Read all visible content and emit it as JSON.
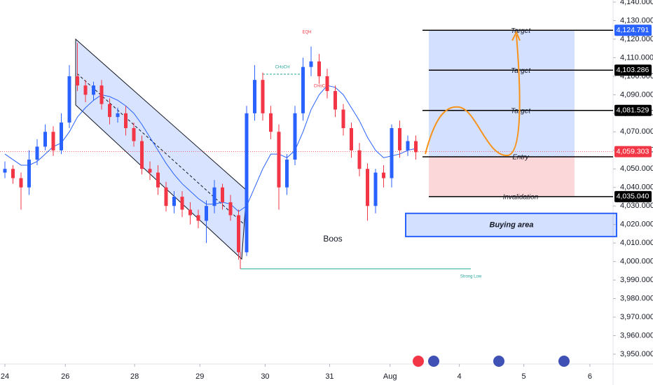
{
  "chart_data": {
    "type": "candlestick",
    "open": [
      4048,
      4050,
      4045,
      4040,
      4055,
      4062,
      4070,
      4060,
      4075,
      4100,
      4095,
      4090,
      4095,
      4085,
      4078,
      4080,
      4072,
      4065,
      4050,
      4048,
      4040,
      4030,
      4035,
      4028,
      4025,
      4022,
      4030,
      4040,
      4032,
      4025,
      4005,
      4080,
      4098,
      4080,
      4070,
      4040,
      4055,
      4080,
      4105,
      4108,
      4100,
      4092,
      4082,
      4072,
      4060,
      4050,
      4030,
      4048,
      4045,
      4072,
      4060,
      4065
    ],
    "high": [
      4054,
      4052,
      4048,
      4060,
      4066,
      4074,
      4073,
      4080,
      4106,
      4118,
      4098,
      4097,
      4098,
      4088,
      4083,
      4084,
      4075,
      4068,
      4054,
      4052,
      4043,
      4038,
      4038,
      4032,
      4028,
      4033,
      4044,
      4042,
      4036,
      4028,
      4084,
      4106,
      4102,
      4084,
      4074,
      4058,
      4084,
      4110,
      4116,
      4112,
      4104,
      4095,
      4085,
      4075,
      4064,
      4053,
      4050,
      4052,
      4074,
      4076,
      4068,
      4068
    ],
    "low": [
      4045,
      4042,
      4028,
      4036,
      4052,
      4060,
      4057,
      4058,
      4072,
      4092,
      4086,
      4087,
      4082,
      4074,
      4075,
      4068,
      4062,
      4047,
      4044,
      4036,
      4027,
      4026,
      4024,
      4020,
      4018,
      4010,
      4026,
      4028,
      4022,
      4001,
      4003,
      4076,
      4076,
      4066,
      4028,
      4036,
      4052,
      4076,
      4100,
      4096,
      4088,
      4078,
      4068,
      4056,
      4046,
      4022,
      4026,
      4040,
      4040,
      4056,
      4057,
      4055
    ],
    "close": [
      4050,
      4045,
      4040,
      4055,
      4062,
      4070,
      4060,
      4075,
      4100,
      4095,
      4090,
      4095,
      4085,
      4078,
      4080,
      4072,
      4065,
      4050,
      4048,
      4040,
      4030,
      4035,
      4028,
      4025,
      4022,
      4030,
      4040,
      4032,
      4025,
      4005,
      4080,
      4098,
      4080,
      4070,
      4040,
      4055,
      4080,
      4105,
      4108,
      4100,
      4092,
      4082,
      4072,
      4060,
      4050,
      4030,
      4048,
      4045,
      4072,
      4060,
      4065,
      4059
    ],
    "moving_average": [
      4058,
      4055,
      4052,
      4052,
      4054,
      4058,
      4062,
      4064,
      4070,
      4078,
      4083,
      4087,
      4090,
      4089,
      4087,
      4084,
      4080,
      4074,
      4067,
      4060,
      4053,
      4047,
      4042,
      4038,
      4034,
      4031,
      4031,
      4032,
      4031,
      4027,
      4030,
      4040,
      4050,
      4058,
      4058,
      4056,
      4060,
      4070,
      4082,
      4090,
      4095,
      4094,
      4090,
      4083,
      4076,
      4067,
      4060,
      4056,
      4057,
      4058,
      4060,
      4061
    ],
    "up_color": "#2962ff",
    "down_color": "#f23645",
    "ma_color": "#2962ff",
    "xlim": [
      -0.6,
      75
    ],
    "xticks": [
      {
        "value": 0,
        "label": "24"
      },
      {
        "value": 7.5,
        "label": "26"
      },
      {
        "value": 16.1,
        "label": "28"
      },
      {
        "value": 24.2,
        "label": "29"
      },
      {
        "value": 32.3,
        "label": "30"
      },
      {
        "value": 40.3,
        "label": "31"
      },
      {
        "value": 47.8,
        "label": "Aug"
      },
      {
        "value": 56.4,
        "label": "4"
      },
      {
        "value": 64.4,
        "label": "5"
      },
      {
        "value": 72.6,
        "label": "6"
      }
    ],
    "ylim": [
      3950,
      4140
    ],
    "yticks": [
      {
        "value": 4140,
        "label": "4,140.000"
      },
      {
        "value": 4130,
        "label": "4,130.000"
      },
      {
        "value": 4120,
        "label": "4,120.000"
      },
      {
        "value": 4110,
        "label": "4,110.000"
      },
      {
        "value": 4100,
        "label": "4,100.000"
      },
      {
        "value": 4090,
        "label": "4,090.000"
      },
      {
        "value": 4080,
        "label": "4,080.000"
      },
      {
        "value": 4070,
        "label": "4,070.000"
      },
      {
        "value": 4060,
        "label": "4,060.000"
      },
      {
        "value": 4050,
        "label": "4,050.000"
      },
      {
        "value": 4040,
        "label": "4,040.000"
      },
      {
        "value": 4030,
        "label": "4,030.000"
      },
      {
        "value": 4020,
        "label": "4,020.000"
      },
      {
        "value": 4010,
        "label": "4,010.000"
      },
      {
        "value": 4000,
        "label": "4,000.000"
      },
      {
        "value": 3990,
        "label": "3,990.000"
      },
      {
        "value": 3980,
        "label": "3,980.000"
      },
      {
        "value": 3970,
        "label": "3,970.000"
      },
      {
        "value": 3960,
        "label": "3,960.000"
      },
      {
        "value": 3950,
        "label": "3,950.000"
      }
    ],
    "levels": [
      {
        "label": "Target",
        "value": 4124.791,
        "value_label": "4,124.791",
        "tag_color": "#2962ff"
      },
      {
        "label": "Target",
        "value": 4103.286,
        "value_label": "4,103.286",
        "tag_color": "#000000"
      },
      {
        "label": "Target",
        "value": 4081.529,
        "value_label": "4,081.529",
        "tag_color": "#000000"
      },
      {
        "label": "Entry",
        "value": 4056.5
      },
      {
        "label": "Invalidation",
        "value": 4035.04,
        "value_label": "4,035.040",
        "tag_color": "#000000"
      }
    ],
    "current_price": {
      "value": 4059.303,
      "label": "4,059.303",
      "color": "#f23645"
    },
    "buying_area": {
      "label": "Buying area",
      "top": 4026,
      "bottom": 4013.5
    },
    "annotations": {
      "boos": "Boos",
      "strong_low": "Strong Low",
      "choch_1": "CHoCH",
      "choch_2": "CHoCH",
      "eqh": "EQH"
    }
  }
}
